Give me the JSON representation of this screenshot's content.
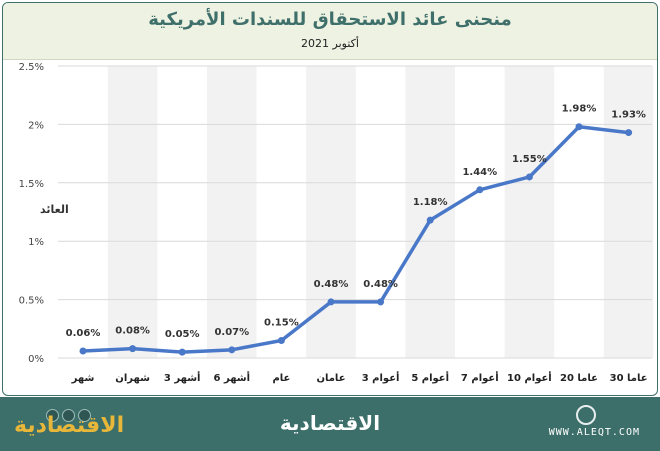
{
  "header": {
    "title": "منحنى عائد الاستحقاق للسندات الأمريكية",
    "subtitle": "أكتوبر 2021"
  },
  "footer": {
    "logo_left": "الاقتصادية",
    "logo_center": "الاقتصادية",
    "site": "WWW.ALEQT.COM"
  },
  "colors": {
    "line": "#4a78c8",
    "accent": "#3c6f6a",
    "header_bg": "#edf2e2"
  },
  "chart_data": {
    "type": "line",
    "title": "منحنى عائد الاستحقاق للسندات الأمريكية",
    "subtitle": "أكتوبر 2021",
    "ylabel": "العائد",
    "xlabel": "",
    "categories": [
      "شهر",
      "شهران",
      "3 أشهر",
      "6 أشهر",
      "عام",
      "عامان",
      "3 أعوام",
      "5 أعوام",
      "7 أعوام",
      "10 أعوام",
      "20 عاما",
      "30 عاما"
    ],
    "series": [
      {
        "values": [
          0.06,
          0.08,
          0.05,
          0.07,
          0.15,
          0.48,
          0.48,
          1.18,
          1.44,
          1.55,
          1.98,
          1.93
        ]
      }
    ],
    "data_labels": [
      "0.06%",
      "0.08%",
      "0.05%",
      "0.07%",
      "0.15%",
      "0.48%",
      "0.48%",
      "1.18%",
      "1.44%",
      "1.55%",
      "1.98%",
      "1.93%"
    ],
    "ylim": [
      0,
      2.5
    ],
    "yticks": [
      0,
      0.5,
      1,
      1.5,
      2,
      2.5
    ],
    "ytick_labels": [
      "0%",
      "0.5%",
      "1%",
      "1.5%",
      "2%",
      "2.5%"
    ],
    "grid": true,
    "legend": "none"
  }
}
